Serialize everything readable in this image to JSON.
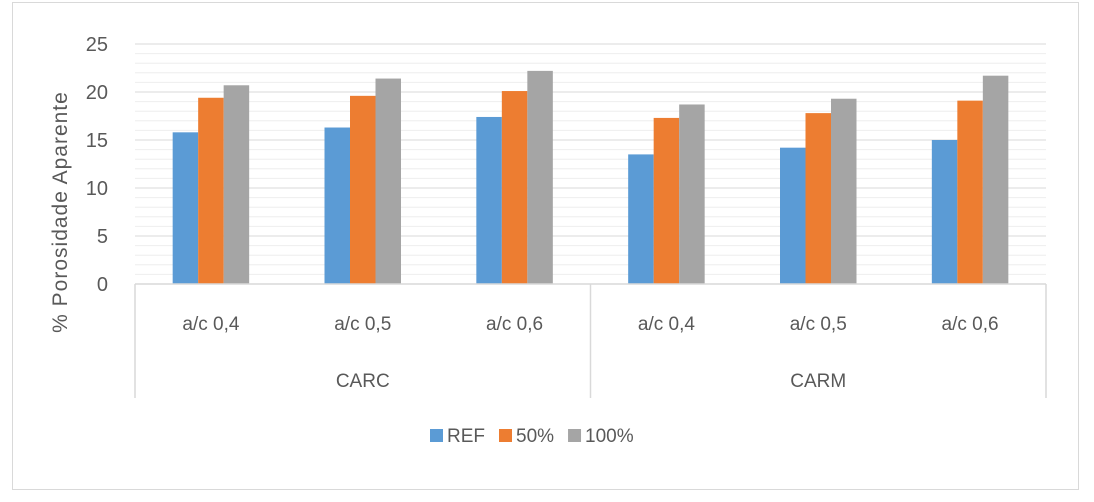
{
  "chart_data": {
    "type": "bar",
    "title": "",
    "xlabel": "",
    "ylabel": "% Porosidade Aparente",
    "ylim": [
      0,
      25
    ],
    "yticks": [
      0,
      5,
      10,
      15,
      20,
      25
    ],
    "grid": true,
    "legend_position": "bottom",
    "groups": [
      {
        "label": "CARC",
        "categories": [
          "a/c 0,4",
          "a/c 0,5",
          "a/c 0,6"
        ]
      },
      {
        "label": "CARM",
        "categories": [
          "a/c 0,4",
          "a/c 0,5",
          "a/c 0,6"
        ]
      }
    ],
    "categories": [
      "a/c 0,4",
      "a/c 0,5",
      "a/c 0,6",
      "a/c 0,4",
      "a/c 0,5",
      "a/c 0,6"
    ],
    "series": [
      {
        "name": "REF",
        "color": "#5b9bd5",
        "values": [
          15.8,
          16.3,
          17.4,
          13.5,
          14.2,
          15.0
        ]
      },
      {
        "name": "50%",
        "color": "#ed7d31",
        "values": [
          19.4,
          19.6,
          20.1,
          17.3,
          17.8,
          19.1
        ]
      },
      {
        "name": "100%",
        "color": "#a5a5a5",
        "values": [
          20.7,
          21.4,
          22.2,
          18.7,
          19.3,
          21.7
        ]
      }
    ]
  }
}
